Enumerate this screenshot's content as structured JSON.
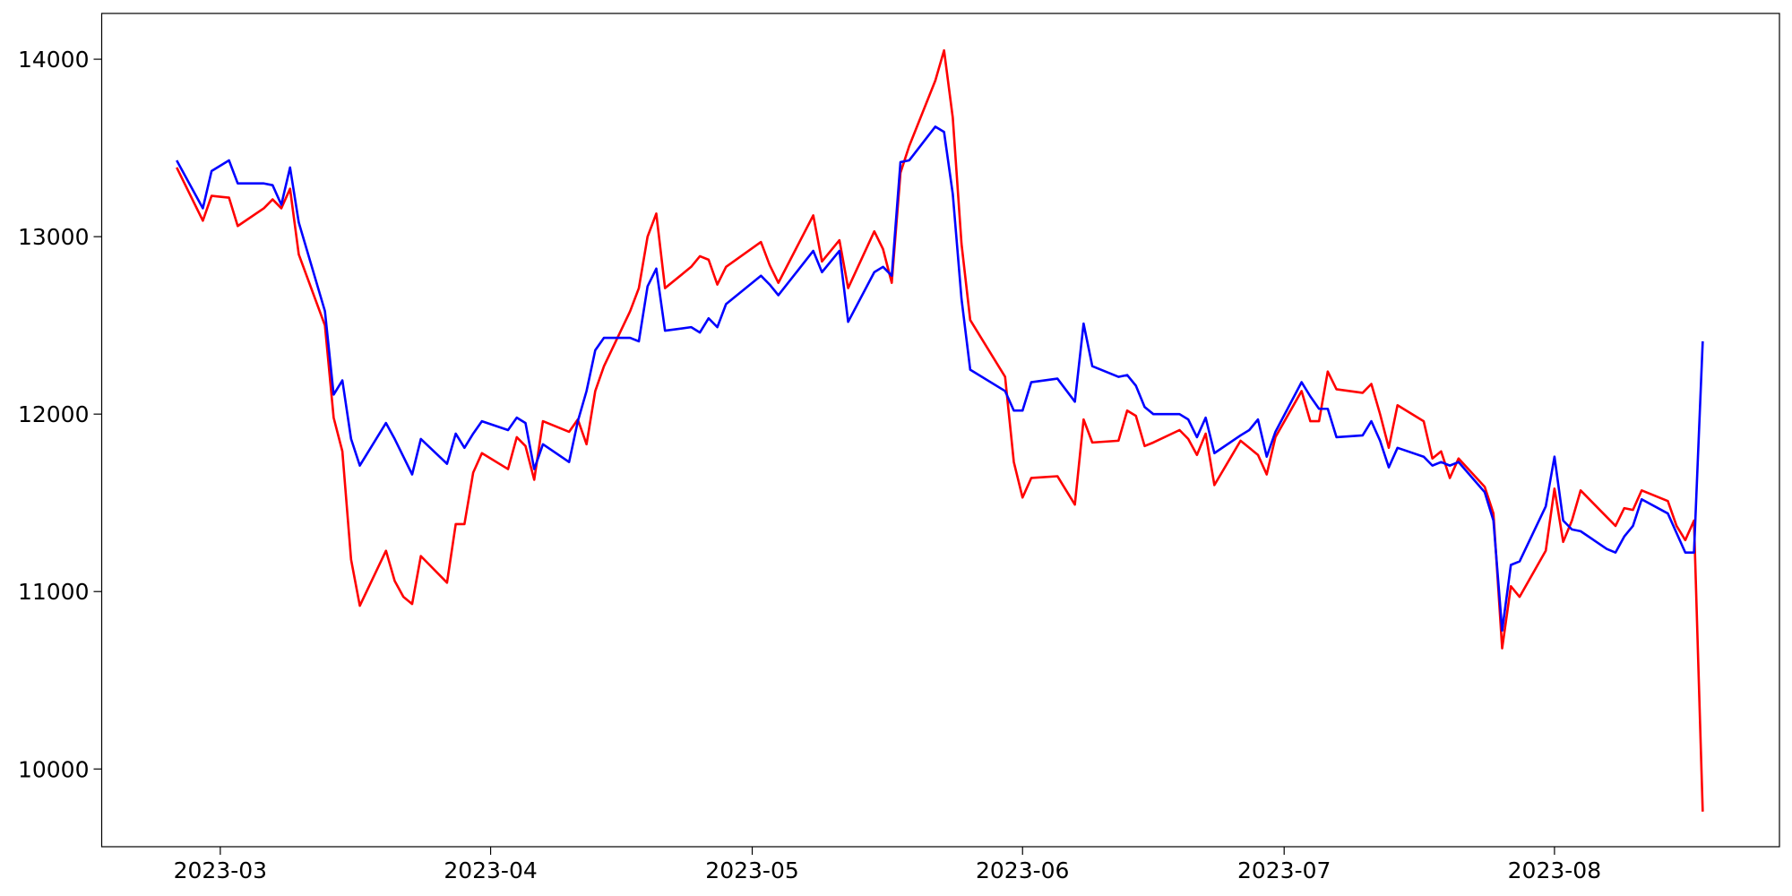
{
  "chart_data": {
    "type": "line",
    "x": [
      19412,
      19415,
      19416,
      19418,
      19419,
      19422,
      19423,
      19424,
      19425,
      19426,
      19429,
      19430,
      19431,
      19432,
      19433,
      19436,
      19437,
      19438,
      19439,
      19440,
      19443,
      19444,
      19445,
      19446,
      19447,
      19450,
      19451,
      19452,
      19453,
      19454,
      19457,
      19458,
      19459,
      19460,
      19461,
      19464,
      19465,
      19466,
      19467,
      19468,
      19471,
      19472,
      19473,
      19474,
      19475,
      19479,
      19480,
      19481,
      19485,
      19486,
      19488,
      19489,
      19492,
      19493,
      19494,
      19495,
      19496,
      19499,
      19500,
      19501,
      19502,
      19503,
      19507,
      19508,
      19509,
      19510,
      19513,
      19515,
      19516,
      19517,
      19520,
      19521,
      19522,
      19523,
      19524,
      19527,
      19528,
      19529,
      19530,
      19531,
      19534,
      19535,
      19536,
      19537,
      19538,
      19541,
      19542,
      19543,
      19544,
      19545,
      19548,
      19549,
      19550,
      19551,
      19552,
      19555,
      19556,
      19557,
      19558,
      19559,
      19562,
      19563,
      19564,
      19565,
      19566,
      19569,
      19570,
      19571,
      19572,
      19573,
      19576,
      19577,
      19578,
      19579,
      19580,
      19583,
      19584,
      19585,
      19586,
      19587
    ],
    "series": [
      {
        "color": "#ff0000",
        "values": [
          13390,
          13090,
          13230,
          13220,
          13060,
          13160,
          13210,
          13160,
          13270,
          12900,
          12500,
          11980,
          11790,
          11180,
          10920,
          11230,
          11060,
          10970,
          10930,
          11200,
          11050,
          11380,
          11380,
          11670,
          11780,
          11690,
          11870,
          11820,
          11630,
          11960,
          11900,
          11970,
          11830,
          12130,
          12270,
          12580,
          12710,
          13000,
          13130,
          12710,
          12830,
          12890,
          12870,
          12730,
          12830,
          12970,
          12840,
          12740,
          13120,
          12860,
          12980,
          12710,
          13030,
          12930,
          12740,
          13360,
          13510,
          13880,
          14050,
          13670,
          12960,
          12530,
          12210,
          11730,
          11530,
          11640,
          11650,
          11490,
          11970,
          11840,
          11850,
          12020,
          11990,
          11820,
          11840,
          11910,
          11860,
          11770,
          11890,
          11600,
          11850,
          11810,
          11770,
          11660,
          11870,
          12130,
          11960,
          11960,
          12240,
          12140,
          12120,
          12170,
          12000,
          11810,
          12050,
          11960,
          11750,
          11790,
          11640,
          11750,
          11590,
          11440,
          10680,
          11030,
          10970,
          11230,
          11580,
          11280,
          11400,
          11570,
          11420,
          11370,
          11470,
          11460,
          11570,
          11510,
          11370,
          11290,
          11400,
          9760
        ]
      },
      {
        "color": "#0000ff",
        "values": [
          13430,
          13160,
          13370,
          13430,
          13300,
          13300,
          13290,
          13180,
          13390,
          13080,
          12580,
          12110,
          12190,
          11860,
          11710,
          11950,
          11860,
          11760,
          11660,
          11860,
          11720,
          11890,
          11810,
          11890,
          11960,
          11910,
          11980,
          11950,
          11690,
          11830,
          11730,
          11960,
          12130,
          12360,
          12430,
          12430,
          12410,
          12720,
          12820,
          12470,
          12490,
          12460,
          12540,
          12490,
          12620,
          12780,
          12730,
          12670,
          12920,
          12800,
          12920,
          12520,
          12800,
          12830,
          12780,
          13420,
          13430,
          13620,
          13590,
          13240,
          12650,
          12250,
          12130,
          12020,
          12020,
          12180,
          12200,
          12070,
          12510,
          12270,
          12210,
          12220,
          12160,
          12040,
          12000,
          12000,
          11970,
          11870,
          11980,
          11780,
          11880,
          11910,
          11970,
          11760,
          11900,
          12180,
          12100,
          12030,
          12030,
          11870,
          11880,
          11960,
          11850,
          11700,
          11810,
          11760,
          11710,
          11730,
          11710,
          11730,
          11560,
          11400,
          10780,
          11150,
          11170,
          11480,
          11760,
          11400,
          11350,
          11340,
          11240,
          11220,
          11310,
          11370,
          11520,
          11440,
          11330,
          11220,
          11220,
          12410
        ]
      }
    ],
    "xlim": [
      19403.4,
      19595.8
    ],
    "xticks": [
      {
        "value": 19417,
        "label": "2023-03"
      },
      {
        "value": 19448,
        "label": "2023-04"
      },
      {
        "value": 19478,
        "label": "2023-05"
      },
      {
        "value": 19509,
        "label": "2023-06"
      },
      {
        "value": 19539,
        "label": "2023-07"
      },
      {
        "value": 19570,
        "label": "2023-08"
      }
    ],
    "ylim": [
      9562,
      14258
    ],
    "yticks": [
      10000,
      11000,
      12000,
      13000,
      14000
    ],
    "grid": false
  }
}
